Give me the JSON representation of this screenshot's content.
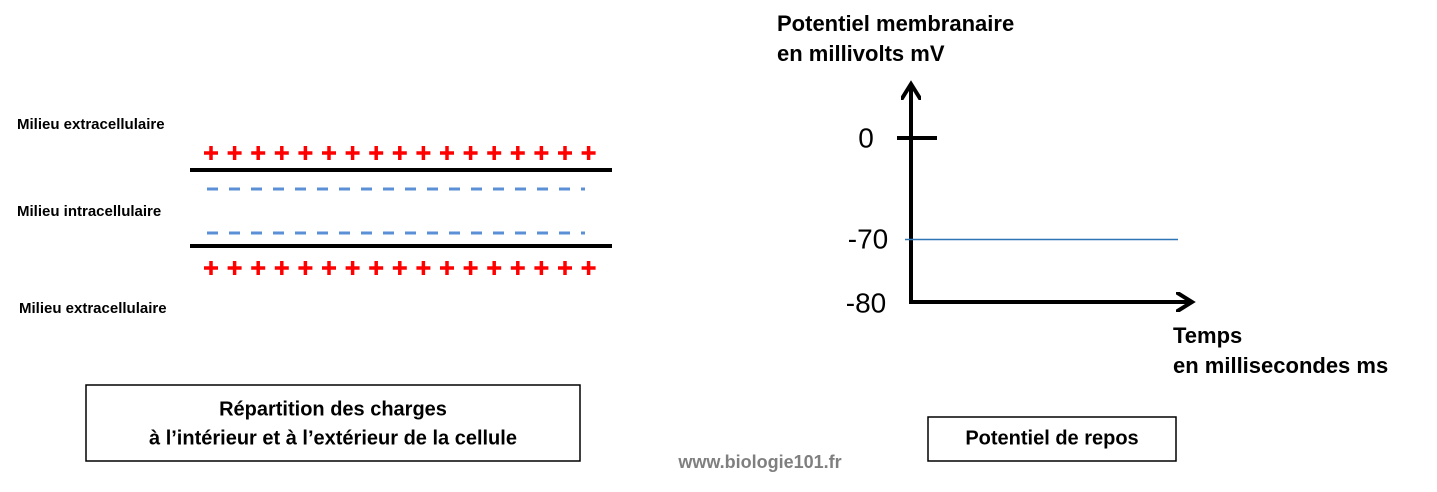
{
  "membrane": {
    "outside_top": "Milieu extracellulaire",
    "inside": "Milieu intracellulaire",
    "outside_bottom": "Milieu extracellulaire",
    "caption": [
      "Répartition des charges",
      "à l’intérieur et à l’extérieur de la cellule"
    ]
  },
  "graph": {
    "y_label": [
      "Potentiel membranaire",
      "en millivolts mV"
    ],
    "y_labels": [
      "0",
      "-70",
      "-80"
    ],
    "x_label": [
      "Temps",
      "en millisecondes ms"
    ],
    "caption": "Potentiel de repos"
  },
  "footer": "www.biologie101.fr"
}
